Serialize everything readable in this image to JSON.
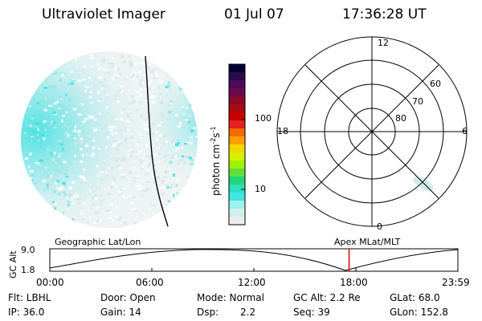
{
  "header": {
    "title": "Ultraviolet Imager",
    "date": "01 Jul 07",
    "time": "17:36:28 UT"
  },
  "colorbar": {
    "unit_label": "photon cm-2s-1",
    "unit_main": "photon cm",
    "unit_exp1": "-2",
    "unit_s": "s",
    "unit_exp2": "-1",
    "tick_labels": [
      "100",
      "10"
    ],
    "colors": [
      "#000030",
      "#2a0a4a",
      "#4b0a5a",
      "#6a0a4a",
      "#8a0a2a",
      "#a80a10",
      "#c80000",
      "#e62020",
      "#f46a00",
      "#fca000",
      "#f0d800",
      "#d2f000",
      "#a0f000",
      "#60e040",
      "#20d878",
      "#30e0c0",
      "#40e8e0",
      "#a0f0f0",
      "#d0f0f0",
      "#ececec"
    ]
  },
  "polar": {
    "labels": {
      "top": "12",
      "right": "6",
      "bottom": "0",
      "left": "18"
    },
    "rings": [
      "60",
      "70",
      "80"
    ]
  },
  "timeline": {
    "left_title": "Geographic Lat/Lon",
    "right_title": "Apex MLat/MLT",
    "axis_label": "GC Alt",
    "y_ticks": [
      "9.0",
      "1.8"
    ],
    "x_ticks": [
      "00:00",
      "06:00",
      "12:00",
      "18:00",
      "23:59"
    ],
    "marker_time_hours": 17.6,
    "marker_color": "#e00000"
  },
  "footer": {
    "flt": "Flt: LBHL",
    "ip": "IP: 36.0",
    "door": "Door: Open",
    "gain": "Gain: 14",
    "mode": "Mode: Normal",
    "dsp_label": "Dsp:",
    "dsp_value": "2.2",
    "gcalt": "GC Alt: 2.2 Re",
    "seq": "Seq: 39",
    "glat": "GLat: 68.0",
    "glon": "GLon: 152.8"
  }
}
